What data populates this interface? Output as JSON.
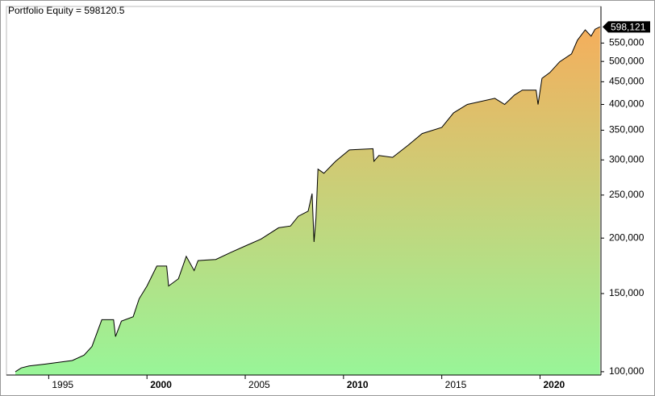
{
  "chart_data": {
    "type": "area",
    "title": "Portfolio Equity = 598120.5",
    "log_y": true,
    "line_color": "#000000",
    "fill_top_color": "#f5ae5c",
    "fill_bottom_color": "#98f598",
    "x": [
      1993.3,
      1993.6,
      1994.0,
      1994.8,
      1996.2,
      1996.8,
      1997.2,
      1997.7,
      1998.3,
      1998.4,
      1998.7,
      1999.3,
      1999.6,
      2000.0,
      2000.5,
      2001.0,
      2001.1,
      2001.6,
      2002.0,
      2002.4,
      2002.6,
      2003.5,
      2004.3,
      2005.0,
      2005.8,
      2006.7,
      2007.3,
      2007.7,
      2008.2,
      2008.4,
      2008.5,
      2008.6,
      2008.7,
      2009.0,
      2009.6,
      2010.3,
      2011.5,
      2011.55,
      2011.8,
      2012.5,
      2013.3,
      2014.0,
      2015.0,
      2015.6,
      2016.3,
      2017.7,
      2018.2,
      2018.7,
      2019.1,
      2019.8,
      2019.9,
      2020.1,
      2020.5,
      2021.0,
      2021.6,
      2021.9,
      2022.3,
      2022.6,
      2022.8,
      2023.05
    ],
    "values": [
      100000,
      102000,
      103000,
      104000,
      106000,
      109000,
      114000,
      131000,
      131000,
      120000,
      130000,
      133000,
      146000,
      156000,
      173000,
      173000,
      156000,
      162000,
      182000,
      169000,
      178000,
      179000,
      186000,
      192000,
      199000,
      211000,
      213000,
      224000,
      230000,
      252000,
      196000,
      222000,
      286000,
      280000,
      298000,
      316000,
      318000,
      298000,
      307000,
      304000,
      324000,
      344000,
      355000,
      383000,
      400000,
      413000,
      400000,
      420000,
      431000,
      431000,
      400000,
      458000,
      472000,
      499000,
      520000,
      558000,
      589000,
      570000,
      591000,
      598120.5
    ],
    "xlim": [
      1992.85,
      2023.1
    ],
    "xticks": [
      1995,
      2000,
      2005,
      2010,
      2015,
      2020
    ],
    "ylim": [
      98300,
      665000
    ],
    "yticks": [
      {
        "value": 100000,
        "label": "100,000"
      },
      {
        "value": 150000,
        "label": "150,000"
      },
      {
        "value": 200000,
        "label": "200,000"
      },
      {
        "value": 250000,
        "label": "250,000"
      },
      {
        "value": 300000,
        "label": "300,000"
      },
      {
        "value": 350000,
        "label": "350,000"
      },
      {
        "value": 400000,
        "label": "400,000"
      },
      {
        "value": 450000,
        "label": "450,000"
      },
      {
        "value": 500000,
        "label": "500,000"
      },
      {
        "value": 550000,
        "label": "550,000"
      }
    ],
    "last_value_marker": {
      "value": 598121,
      "label": "598,121"
    }
  }
}
